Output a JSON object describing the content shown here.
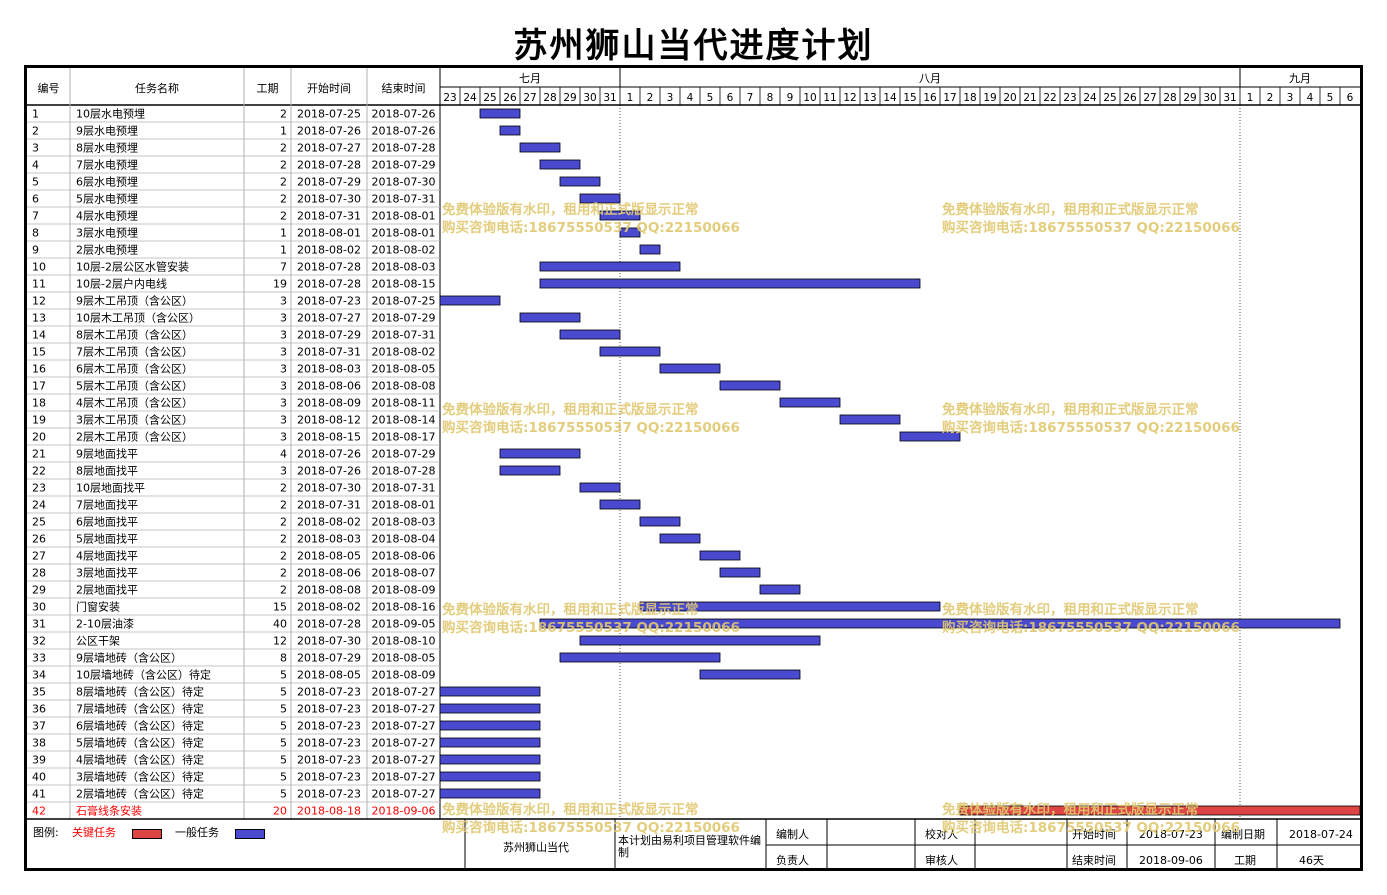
{
  "title": "苏州狮山当代进度计划",
  "chart_data": {
    "type": "gantt",
    "start_date": "2018-07-23",
    "headers": {
      "id": "编号",
      "name": "任务名称",
      "duration": "工期",
      "start": "开始时间",
      "end": "结束时间"
    },
    "months": [
      {
        "label": "七月",
        "days": [
          "23",
          "24",
          "25",
          "26",
          "27",
          "28",
          "29",
          "30",
          "31"
        ]
      },
      {
        "label": "八月",
        "days": [
          "1",
          "2",
          "3",
          "4",
          "5",
          "6",
          "7",
          "8",
          "9",
          "10",
          "11",
          "12",
          "13",
          "14",
          "15",
          "16",
          "17",
          "18",
          "19",
          "20",
          "21",
          "22",
          "23",
          "24",
          "25",
          "26",
          "27",
          "28",
          "29",
          "30",
          "31"
        ]
      },
      {
        "label": "九月",
        "days": [
          "1",
          "2",
          "3",
          "4",
          "5",
          "6"
        ]
      }
    ],
    "tasks": [
      {
        "id": "1",
        "name": "10层水电预埋",
        "duration": "2",
        "start": "2018-07-25",
        "end": "2018-07-26",
        "critical": false
      },
      {
        "id": "2",
        "name": "9层水电预埋",
        "duration": "1",
        "start": "2018-07-26",
        "end": "2018-07-26",
        "critical": false
      },
      {
        "id": "3",
        "name": "8层水电预埋",
        "duration": "2",
        "start": "2018-07-27",
        "end": "2018-07-28",
        "critical": false
      },
      {
        "id": "4",
        "name": "7层水电预埋",
        "duration": "2",
        "start": "2018-07-28",
        "end": "2018-07-29",
        "critical": false
      },
      {
        "id": "5",
        "name": "6层水电预埋",
        "duration": "2",
        "start": "2018-07-29",
        "end": "2018-07-30",
        "critical": false
      },
      {
        "id": "6",
        "name": "5层水电预埋",
        "duration": "2",
        "start": "2018-07-30",
        "end": "2018-07-31",
        "critical": false
      },
      {
        "id": "7",
        "name": "4层水电预埋",
        "duration": "2",
        "start": "2018-07-31",
        "end": "2018-08-01",
        "critical": false
      },
      {
        "id": "8",
        "name": "3层水电预埋",
        "duration": "1",
        "start": "2018-08-01",
        "end": "2018-08-01",
        "critical": false
      },
      {
        "id": "9",
        "name": "2层水电预埋",
        "duration": "1",
        "start": "2018-08-02",
        "end": "2018-08-02",
        "critical": false
      },
      {
        "id": "10",
        "name": "10层-2层公区水管安装",
        "duration": "7",
        "start": "2018-07-28",
        "end": "2018-08-03",
        "critical": false
      },
      {
        "id": "11",
        "name": "10层-2层户内电线",
        "duration": "19",
        "start": "2018-07-28",
        "end": "2018-08-15",
        "critical": false
      },
      {
        "id": "12",
        "name": "9层木工吊顶（含公区）",
        "duration": "3",
        "start": "2018-07-23",
        "end": "2018-07-25",
        "critical": false
      },
      {
        "id": "13",
        "name": "10层木工吊顶（含公区）",
        "duration": "3",
        "start": "2018-07-27",
        "end": "2018-07-29",
        "critical": false
      },
      {
        "id": "14",
        "name": "8层木工吊顶（含公区）",
        "duration": "3",
        "start": "2018-07-29",
        "end": "2018-07-31",
        "critical": false
      },
      {
        "id": "15",
        "name": "7层木工吊顶（含公区）",
        "duration": "3",
        "start": "2018-07-31",
        "end": "2018-08-02",
        "critical": false
      },
      {
        "id": "16",
        "name": "6层木工吊顶（含公区）",
        "duration": "3",
        "start": "2018-08-03",
        "end": "2018-08-05",
        "critical": false
      },
      {
        "id": "17",
        "name": "5层木工吊顶（含公区）",
        "duration": "3",
        "start": "2018-08-06",
        "end": "2018-08-08",
        "critical": false
      },
      {
        "id": "18",
        "name": "4层木工吊顶（含公区）",
        "duration": "3",
        "start": "2018-08-09",
        "end": "2018-08-11",
        "critical": false
      },
      {
        "id": "19",
        "name": "3层木工吊顶（含公区）",
        "duration": "3",
        "start": "2018-08-12",
        "end": "2018-08-14",
        "critical": false
      },
      {
        "id": "20",
        "name": "2层木工吊顶（含公区）",
        "duration": "3",
        "start": "2018-08-15",
        "end": "2018-08-17",
        "critical": false
      },
      {
        "id": "21",
        "name": "9层地面找平",
        "duration": "4",
        "start": "2018-07-26",
        "end": "2018-07-29",
        "critical": false
      },
      {
        "id": "22",
        "name": "8层地面找平",
        "duration": "3",
        "start": "2018-07-26",
        "end": "2018-07-28",
        "critical": false
      },
      {
        "id": "23",
        "name": "10层地面找平",
        "duration": "2",
        "start": "2018-07-30",
        "end": "2018-07-31",
        "critical": false
      },
      {
        "id": "24",
        "name": "7层地面找平",
        "duration": "2",
        "start": "2018-07-31",
        "end": "2018-08-01",
        "critical": false
      },
      {
        "id": "25",
        "name": "6层地面找平",
        "duration": "2",
        "start": "2018-08-02",
        "end": "2018-08-03",
        "critical": false
      },
      {
        "id": "26",
        "name": "5层地面找平",
        "duration": "2",
        "start": "2018-08-03",
        "end": "2018-08-04",
        "critical": false
      },
      {
        "id": "27",
        "name": "4层地面找平",
        "duration": "2",
        "start": "2018-08-05",
        "end": "2018-08-06",
        "critical": false
      },
      {
        "id": "28",
        "name": "3层地面找平",
        "duration": "2",
        "start": "2018-08-06",
        "end": "2018-08-07",
        "critical": false
      },
      {
        "id": "29",
        "name": "2层地面找平",
        "duration": "2",
        "start": "2018-08-08",
        "end": "2018-08-09",
        "critical": false
      },
      {
        "id": "30",
        "name": "门窗安装",
        "duration": "15",
        "start": "2018-08-02",
        "end": "2018-08-16",
        "critical": false
      },
      {
        "id": "31",
        "name": "2-10层油漆",
        "duration": "40",
        "start": "2018-07-28",
        "end": "2018-09-05",
        "critical": false
      },
      {
        "id": "32",
        "name": "公区干架",
        "duration": "12",
        "start": "2018-07-30",
        "end": "2018-08-10",
        "critical": false
      },
      {
        "id": "33",
        "name": "9层墙地砖（含公区）",
        "duration": "8",
        "start": "2018-07-29",
        "end": "2018-08-05",
        "critical": false
      },
      {
        "id": "34",
        "name": "10层墙地砖（含公区）待定",
        "duration": "5",
        "start": "2018-08-05",
        "end": "2018-08-09",
        "critical": false
      },
      {
        "id": "35",
        "name": "8层墙地砖（含公区）待定",
        "duration": "5",
        "start": "2018-07-23",
        "end": "2018-07-27",
        "critical": false
      },
      {
        "id": "36",
        "name": "7层墙地砖（含公区）待定",
        "duration": "5",
        "start": "2018-07-23",
        "end": "2018-07-27",
        "critical": false
      },
      {
        "id": "37",
        "name": "6层墙地砖（含公区）待定",
        "duration": "5",
        "start": "2018-07-23",
        "end": "2018-07-27",
        "critical": false
      },
      {
        "id": "38",
        "name": "5层墙地砖（含公区）待定",
        "duration": "5",
        "start": "2018-07-23",
        "end": "2018-07-27",
        "critical": false
      },
      {
        "id": "39",
        "name": "4层墙地砖（含公区）待定",
        "duration": "5",
        "start": "2018-07-23",
        "end": "2018-07-27",
        "critical": false
      },
      {
        "id": "40",
        "name": "3层墙地砖（含公区）待定",
        "duration": "5",
        "start": "2018-07-23",
        "end": "2018-07-27",
        "critical": false
      },
      {
        "id": "41",
        "name": "2层墙地砖（含公区）待定",
        "duration": "5",
        "start": "2018-07-23",
        "end": "2018-07-27",
        "critical": false
      },
      {
        "id": "42",
        "name": "石膏线条安装",
        "duration": "20",
        "start": "2018-08-18",
        "end": "2018-09-06",
        "critical": true
      }
    ],
    "colors": {
      "normal": "#4a4ad0",
      "critical": "#dd4444",
      "grid": "#b0b0b0",
      "critical_text": "#ff0000"
    }
  },
  "watermark": {
    "line1": "免费体验版有水印，租用和正式版显示正常",
    "line2": "购买咨询电话:18675550537 QQ:22150066"
  },
  "footer": {
    "legend_label": "图例:",
    "critical_label": "关键任务",
    "normal_label": "一般任务",
    "project_name": "苏州狮山当代",
    "software_note": "本计划由易利项目管理软件编制",
    "compiler_label": "编制人",
    "checker_label": "校对人",
    "start_label": "开始时间",
    "start_value": "2018-07-23",
    "compile_date_label": "编制日期",
    "compile_date_value": "2018-07-24",
    "owner_label": "负责人",
    "reviewer_label": "审核人",
    "end_label": "结束时间",
    "end_value": "2018-09-06",
    "duration_label": "工期",
    "duration_value": "46天"
  }
}
